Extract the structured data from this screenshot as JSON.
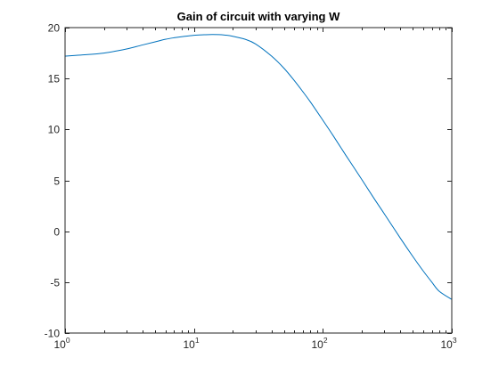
{
  "chart_data": {
    "type": "line",
    "title": "Gain of circuit with varying W",
    "xlabel": "",
    "ylabel": "",
    "xscale": "log",
    "xlim": [
      1,
      1000
    ],
    "ylim": [
      -10,
      20
    ],
    "grid": false,
    "box": true,
    "x_ticks": [
      {
        "base": "10",
        "exp": "0",
        "value": 1
      },
      {
        "base": "10",
        "exp": "1",
        "value": 10
      },
      {
        "base": "10",
        "exp": "2",
        "value": 100
      },
      {
        "base": "10",
        "exp": "3",
        "value": 1000
      }
    ],
    "y_ticks": [
      {
        "label": "-10",
        "value": -10
      },
      {
        "label": "-5",
        "value": -5
      },
      {
        "label": "0",
        "value": 0
      },
      {
        "label": "5",
        "value": 5
      },
      {
        "label": "10",
        "value": 10
      },
      {
        "label": "15",
        "value": 15
      },
      {
        "label": "20",
        "value": 20
      }
    ],
    "series": [
      {
        "color": "#0072bd",
        "x": [
          1,
          1.5,
          2,
          2.5,
          3,
          4,
          5,
          6,
          7,
          8,
          10,
          12,
          14,
          17,
          20,
          25,
          30,
          40,
          50,
          60,
          70,
          80,
          100,
          120,
          150,
          200,
          250,
          300,
          400,
          500,
          600,
          700,
          800,
          1000
        ],
        "y": [
          17.2,
          17.35,
          17.5,
          17.7,
          17.9,
          18.3,
          18.6,
          18.85,
          19.0,
          19.1,
          19.25,
          19.3,
          19.32,
          19.28,
          19.15,
          18.85,
          18.4,
          17.2,
          16.0,
          14.8,
          13.7,
          12.7,
          10.9,
          9.4,
          7.5,
          5.1,
          3.2,
          1.7,
          -0.7,
          -2.5,
          -3.9,
          -5.0,
          -5.9,
          -6.7
        ]
      }
    ]
  }
}
